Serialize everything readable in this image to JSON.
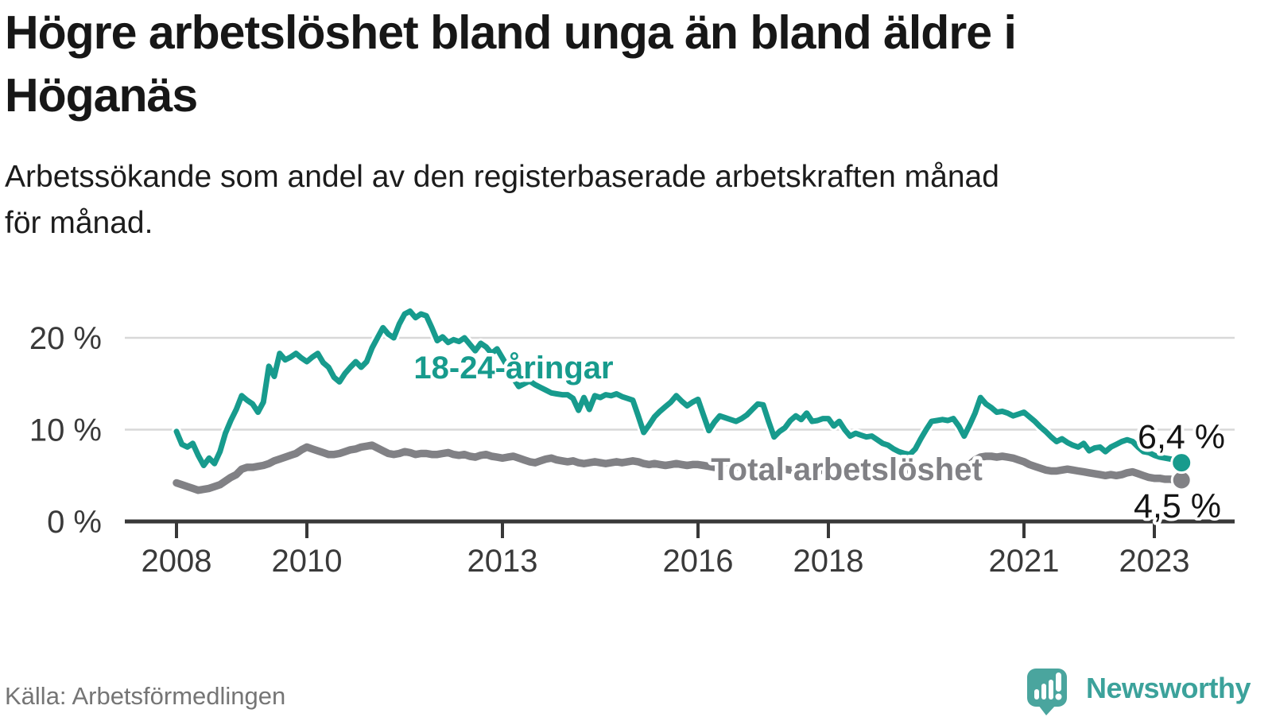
{
  "title": {
    "lines": [
      "Högre arbetslöshet bland unga än bland äldre i",
      "Höganäs"
    ]
  },
  "subtitle": {
    "lines": [
      "Arbetssökande som andel av den registerbaserade arbetskraften månad",
      "för månad."
    ]
  },
  "source": "Källa: Arbetsförmedlingen",
  "branding": {
    "name": "Newsworthy",
    "icon": "speech-bubble-bar-chart-exclamation-icon",
    "brand_teal": "#3ca29b",
    "icon_teal": "#4aa59e"
  },
  "colors": {
    "youth_line": "#179b8d",
    "total_line": "#818185",
    "axis": "#383838",
    "grid": "#d8d8d8",
    "text_dark": "#171717",
    "text_gray": "#757575"
  },
  "chart_data": {
    "type": "line",
    "title": "Högre arbetslöshet bland unga än bland äldre i Höganäs",
    "subtitle": "Arbetssökande som andel av den registerbaserade arbetskraften månad för månad.",
    "x_unit": "monthly, fractional years",
    "x_start": 2008.0,
    "x_step": 0.08333,
    "x_end": 2023.417,
    "x_ticks": [
      2008,
      2010,
      2013,
      2016,
      2018,
      2021,
      2023
    ],
    "y_ticks": [
      {
        "value": 0,
        "label": "0 %"
      },
      {
        "value": 10,
        "label": "10 %"
      },
      {
        "value": 20,
        "label": "20 %"
      }
    ],
    "ylim": [
      0,
      24.5
    ],
    "grid": "horizontal gridlines at 10% and 20% only",
    "legend_position": "inline labels on lines, end-value labels at right",
    "series": [
      {
        "name": "18-24-åringar",
        "color": "#179b8d",
        "end_label": "6,4 %",
        "end_value": 6.4,
        "values": [
          9.8,
          8.4,
          8.1,
          8.5,
          7.2,
          6.1,
          6.9,
          6.3,
          7.6,
          9.6,
          11.0,
          12.2,
          13.7,
          13.2,
          12.8,
          11.9,
          13.0,
          16.9,
          15.8,
          18.3,
          17.6,
          17.9,
          18.3,
          17.8,
          17.4,
          17.9,
          18.3,
          17.3,
          16.8,
          15.7,
          15.2,
          16.1,
          16.8,
          17.4,
          16.8,
          17.4,
          18.9,
          20.0,
          21.1,
          20.4,
          20.0,
          21.5,
          22.6,
          22.9,
          22.2,
          22.6,
          22.4,
          21.1,
          19.7,
          20.1,
          19.5,
          19.8,
          19.6,
          20.0,
          19.3,
          18.6,
          19.4,
          19.0,
          18.3,
          18.8,
          17.8,
          16.8,
          15.6,
          14.7,
          15.0,
          15.3,
          14.9,
          14.6,
          14.3,
          14.0,
          13.9,
          13.8,
          13.8,
          13.4,
          12.1,
          13.5,
          12.2,
          13.7,
          13.5,
          13.8,
          13.7,
          13.9,
          13.6,
          13.4,
          13.2,
          11.5,
          9.7,
          10.5,
          11.4,
          12.0,
          12.5,
          13.0,
          13.7,
          13.1,
          12.6,
          13.0,
          13.3,
          11.6,
          9.9,
          10.8,
          11.5,
          11.3,
          11.1,
          10.9,
          11.2,
          11.6,
          12.2,
          12.8,
          12.7,
          10.9,
          9.2,
          9.8,
          10.2,
          11.0,
          11.5,
          11.1,
          11.8,
          10.9,
          11.0,
          11.2,
          11.2,
          10.4,
          10.9,
          10.0,
          9.3,
          9.6,
          9.4,
          9.2,
          9.3,
          8.9,
          8.5,
          8.3,
          7.9,
          7.6,
          7.4,
          7.3,
          7.9,
          9.0,
          10.0,
          10.9,
          11.0,
          11.1,
          11.0,
          11.2,
          10.4,
          9.3,
          10.5,
          11.8,
          13.5,
          12.8,
          12.4,
          11.9,
          12.0,
          11.8,
          11.5,
          11.7,
          11.9,
          11.4,
          10.9,
          10.3,
          9.8,
          9.2,
          8.7,
          9.0,
          8.6,
          8.3,
          8.1,
          8.5,
          7.7,
          8.0,
          8.1,
          7.6,
          8.1,
          8.4,
          8.7,
          8.9,
          8.7,
          8.1,
          7.6,
          7.5,
          7.2,
          7.0,
          6.9,
          6.8,
          6.6,
          6.4
        ]
      },
      {
        "name": "Total arbetslöshet",
        "color": "#818185",
        "end_label": "4,5 %",
        "end_value": 4.5,
        "values": [
          4.2,
          4.0,
          3.8,
          3.6,
          3.4,
          3.5,
          3.6,
          3.8,
          4.0,
          4.4,
          4.8,
          5.1,
          5.7,
          5.9,
          5.9,
          6.0,
          6.1,
          6.3,
          6.6,
          6.8,
          7.0,
          7.2,
          7.4,
          7.8,
          8.1,
          7.9,
          7.7,
          7.5,
          7.3,
          7.3,
          7.4,
          7.6,
          7.8,
          7.9,
          8.1,
          8.2,
          8.3,
          8.0,
          7.7,
          7.4,
          7.3,
          7.4,
          7.6,
          7.5,
          7.3,
          7.4,
          7.4,
          7.3,
          7.3,
          7.4,
          7.5,
          7.3,
          7.2,
          7.3,
          7.1,
          7.0,
          7.2,
          7.3,
          7.1,
          7.0,
          6.9,
          7.0,
          7.1,
          6.9,
          6.7,
          6.5,
          6.4,
          6.6,
          6.8,
          6.9,
          6.7,
          6.6,
          6.5,
          6.6,
          6.4,
          6.3,
          6.4,
          6.5,
          6.4,
          6.3,
          6.4,
          6.5,
          6.4,
          6.5,
          6.6,
          6.5,
          6.3,
          6.2,
          6.3,
          6.2,
          6.1,
          6.2,
          6.3,
          6.2,
          6.1,
          6.2,
          6.2,
          6.1,
          6.0,
          5.9,
          6.0,
          6.1,
          6.0,
          5.9,
          6.0,
          5.9,
          5.8,
          5.9,
          5.9,
          5.8,
          5.7,
          5.6,
          5.7,
          5.6,
          5.5,
          5.6,
          5.7,
          5.6,
          5.5,
          5.6,
          5.5,
          5.6,
          5.7,
          5.5,
          5.4,
          5.5,
          5.6,
          5.7,
          5.8,
          5.7,
          5.6,
          5.7,
          5.8,
          5.7,
          5.6,
          5.5,
          5.4,
          5.5,
          5.4,
          5.5,
          5.6,
          5.5,
          5.4,
          5.5,
          5.6,
          5.8,
          6.2,
          6.7,
          7.0,
          7.1,
          7.1,
          7.0,
          7.1,
          7.0,
          6.9,
          6.7,
          6.5,
          6.2,
          6.0,
          5.8,
          5.6,
          5.5,
          5.5,
          5.6,
          5.7,
          5.6,
          5.5,
          5.4,
          5.3,
          5.2,
          5.1,
          5.0,
          5.1,
          5.0,
          5.1,
          5.3,
          5.4,
          5.2,
          5.0,
          4.8,
          4.7,
          4.7,
          4.6,
          4.6,
          4.5,
          4.5
        ]
      }
    ]
  }
}
